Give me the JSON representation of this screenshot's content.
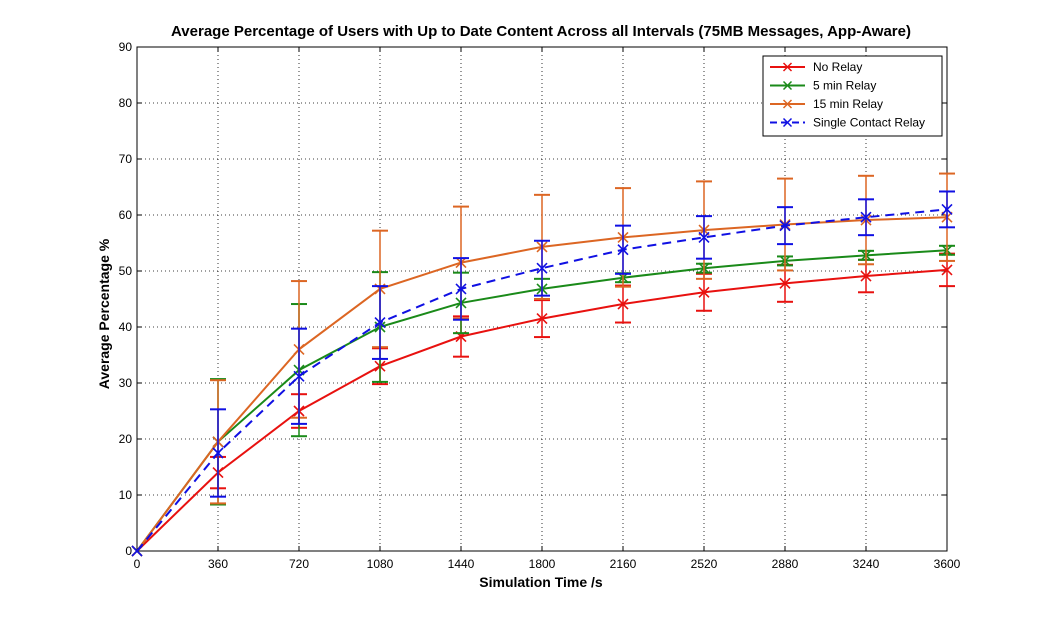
{
  "chart_data": {
    "type": "line",
    "title": "Average Percentage of Users with Up to Date Content Across all Intervals (75MB Messages, App-Aware)",
    "xlabel": "Simulation Time /s",
    "ylabel": "Average Percentage %",
    "xlim": [
      0,
      3600
    ],
    "ylim": [
      0,
      90
    ],
    "xticks": [
      0,
      360,
      720,
      1080,
      1440,
      1800,
      2160,
      2520,
      2880,
      3240,
      3600
    ],
    "yticks": [
      0,
      10,
      20,
      30,
      40,
      50,
      60,
      70,
      80,
      90
    ],
    "grid": true,
    "legend_position": "top-right",
    "x": [
      0,
      360,
      720,
      1080,
      1440,
      1800,
      2160,
      2520,
      2880,
      3240,
      3600
    ],
    "series": [
      {
        "name": "No Relay",
        "color": "#e8110f",
        "dashed": false,
        "values": [
          0,
          14,
          25,
          33,
          38.3,
          41.5,
          44.1,
          46.2,
          47.8,
          49.1,
          50.2
        ],
        "err": [
          0,
          2.8,
          3,
          3.2,
          3.6,
          3.3,
          3.3,
          3.3,
          3.3,
          2.9,
          2.9
        ]
      },
      {
        "name": "5 min Relay",
        "color": "#1a8a19",
        "dashed": false,
        "values": [
          0,
          19.5,
          32.3,
          40,
          44.3,
          46.8,
          48.8,
          50.5,
          51.8,
          52.8,
          53.7
        ],
        "err": [
          0,
          11.2,
          11.8,
          9.8,
          5.4,
          1.8,
          0.8,
          0.8,
          0.8,
          0.8,
          0.8
        ]
      },
      {
        "name": "15 min Relay",
        "color": "#dc6623",
        "dashed": false,
        "values": [
          0,
          19.5,
          36,
          46.8,
          51.5,
          54.3,
          56,
          57.3,
          58.3,
          59.1,
          59.6
        ],
        "err": [
          0,
          11,
          12.2,
          10.4,
          10,
          9.3,
          8.8,
          8.7,
          8.2,
          7.9,
          7.8
        ]
      },
      {
        "name": "Single Contact Relay",
        "color": "#1010e3",
        "dashed": true,
        "values": [
          0,
          17.5,
          31.2,
          40.8,
          46.8,
          50.5,
          53.8,
          56,
          58.1,
          59.6,
          61
        ],
        "err": [
          0,
          7.8,
          8.5,
          6.5,
          5.5,
          4.9,
          4.3,
          3.8,
          3.3,
          3.2,
          3.2
        ]
      }
    ]
  }
}
